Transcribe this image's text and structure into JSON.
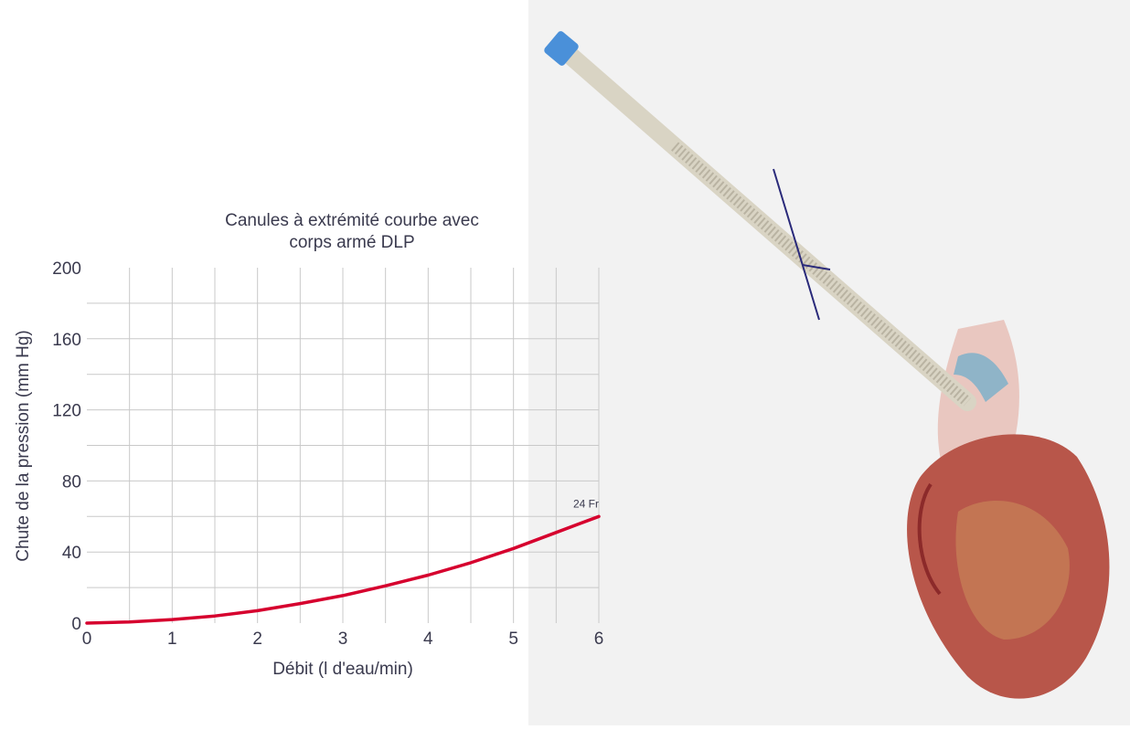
{
  "colors": {
    "series": "#d6002e",
    "grid": "#c9c9c9",
    "text": "#3a3a4e",
    "photo_background": "#f2f2f2"
  },
  "photo": {
    "subject": "DLP curved-tip cannula with wire-reinforced body inserted into the aorta of a heart"
  },
  "chart_data": {
    "type": "line",
    "title": [
      "Canules à extrémité courbe avec",
      "corps armé DLP"
    ],
    "xlabel": "Débit (l d'eau/min)",
    "ylabel": "Chute de la pression (mm Hg)",
    "xlim": [
      0,
      6
    ],
    "ylim": [
      0,
      200
    ],
    "x_ticks": [
      0,
      1,
      2,
      3,
      4,
      5,
      6
    ],
    "y_ticks": [
      0,
      40,
      80,
      120,
      160,
      200
    ],
    "grid": true,
    "series": [
      {
        "name": "24 Fr",
        "x": [
          0,
          0.5,
          1,
          1.5,
          2,
          2.5,
          3,
          3.5,
          4,
          4.5,
          5,
          5.5,
          6
        ],
        "y": [
          0,
          0.6,
          2,
          4,
          7,
          11,
          15.5,
          21,
          27,
          34,
          42,
          51,
          60
        ]
      }
    ]
  }
}
